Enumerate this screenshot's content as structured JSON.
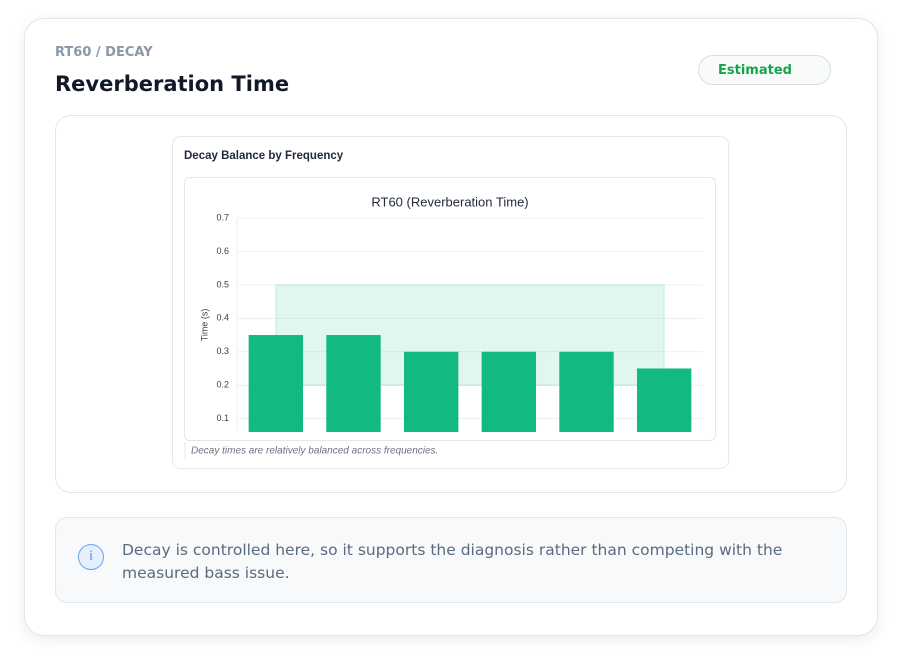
{
  "header": {
    "eyebrow": "RT60 / DECAY",
    "title": "Reverberation Time",
    "badge": "Estimated"
  },
  "panel": {
    "heading": "Decay Balance by Frequency",
    "note": "Decay times are relatively balanced across frequencies."
  },
  "chart_data": {
    "type": "bar",
    "title": "RT60 (Reverberation Time)",
    "y_label": "Time (s)",
    "categories": [
      null,
      null,
      null,
      null,
      null,
      null
    ],
    "values": [
      0.35,
      0.35,
      0.3,
      0.3,
      0.3,
      0.25
    ],
    "color": "#12b981",
    "shaded_range": [
      0.2,
      0.5
    ],
    "shaded_color": "#12b981",
    "ylim": [
      0.06,
      0.7
    ],
    "yticks": [
      0.1,
      0.2,
      0.3,
      0.4,
      0.5,
      0.6,
      0.7
    ],
    "grid": true
  },
  "info": {
    "icon": "i",
    "text": "Decay is controlled here, so it supports the diagnosis rather than competing with the measured bass issue."
  }
}
